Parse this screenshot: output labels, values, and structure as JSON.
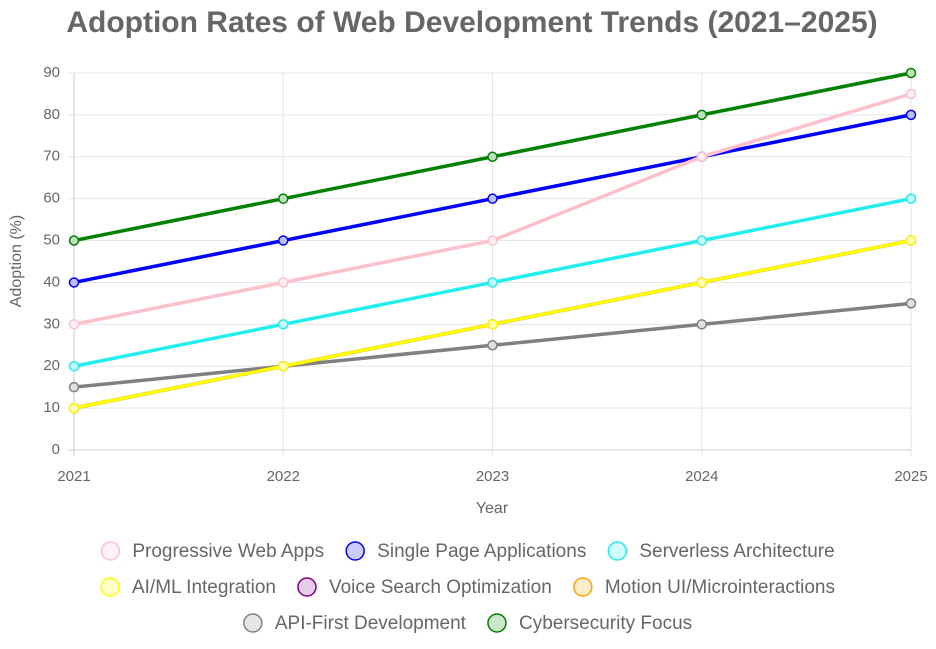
{
  "chart_data": {
    "type": "line",
    "title": "Adoption Rates of Web Development Trends (2021–2025)",
    "x_label": "Year",
    "y_label": "Adoption (%)",
    "categories": [
      "2021",
      "2022",
      "2023",
      "2024",
      "2025"
    ],
    "ylim": [
      0,
      90
    ],
    "yticks": [
      0,
      10,
      20,
      30,
      40,
      50,
      60,
      70,
      80,
      90
    ],
    "grid": true,
    "legend": "bottom",
    "series": [
      {
        "name": "Progressive Web Apps",
        "color": "#ffc0cb",
        "values": [
          30,
          40,
          50,
          70,
          85
        ]
      },
      {
        "name": "Single Page Applications",
        "color": "#0000ff",
        "values": [
          40,
          50,
          60,
          70,
          80
        ]
      },
      {
        "name": "Serverless Architecture",
        "color": "#22eeee",
        "values": [
          20,
          30,
          40,
          50,
          60
        ]
      },
      {
        "name": "AI/ML Integration",
        "color": "#ffff00",
        "values": [
          10,
          20,
          30,
          40,
          50
        ]
      },
      {
        "name": "Voice Search Optimization",
        "color": "#800080",
        "values": [
          10,
          20,
          30,
          40,
          50
        ]
      },
      {
        "name": "Motion UI/Microinteractions",
        "color": "#ffa500",
        "values": [
          10,
          20,
          30,
          40,
          50
        ]
      },
      {
        "name": "API-First Development",
        "color": "#808080",
        "values": [
          15,
          20,
          25,
          30,
          35
        ]
      },
      {
        "name": "Cybersecurity Focus",
        "color": "#008000",
        "values": [
          50,
          60,
          70,
          80,
          90
        ]
      }
    ]
  }
}
